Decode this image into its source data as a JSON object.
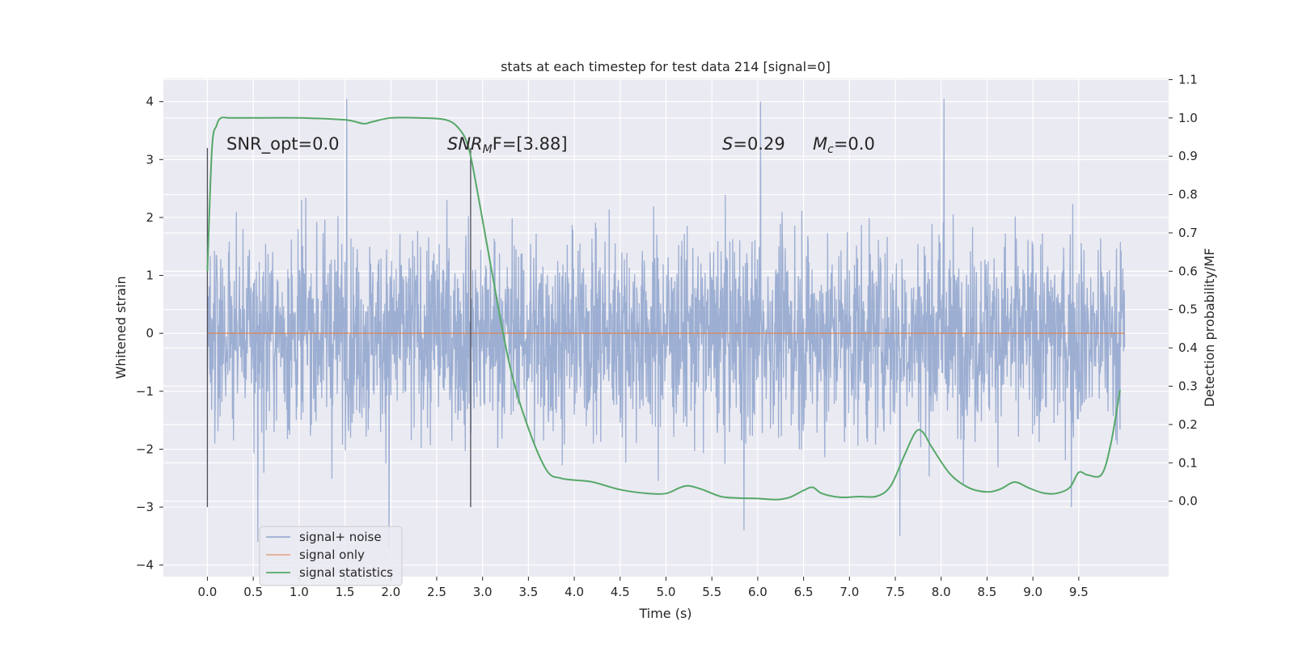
{
  "chart_data": {
    "type": "line",
    "title": "stats at each timestep for test data 214 [signal=0]",
    "xlabel": "Time (s)",
    "ylabel_left": "Whitened strain",
    "ylabel_right": "Detection probability/MF",
    "xlim": [
      -0.48,
      10.48
    ],
    "ylim_left": [
      -4.2,
      4.4
    ],
    "ylim_right": [
      -0.197,
      1.103
    ],
    "x_ticks": [
      0.0,
      0.5,
      1.0,
      1.5,
      2.0,
      2.5,
      3.0,
      3.5,
      4.0,
      4.5,
      5.0,
      5.5,
      6.0,
      6.5,
      7.0,
      7.5,
      8.0,
      8.5,
      9.0,
      9.5
    ],
    "x_tick_labels": [
      "0.0",
      "0.5",
      "1.0",
      "1.5",
      "2.0",
      "2.5",
      "3.0",
      "3.5",
      "4.0",
      "4.5",
      "5.0",
      "5.5",
      "6.0",
      "6.5",
      "7.0",
      "7.5",
      "8.0",
      "8.5",
      "9.0",
      "9.5"
    ],
    "y_ticks_left": [
      -4,
      -3,
      -2,
      -1,
      0,
      1,
      2,
      3,
      4
    ],
    "y_tick_labels_left": [
      "−4",
      "−3",
      "−2",
      "−1",
      "0",
      "1",
      "2",
      "3",
      "4"
    ],
    "y_ticks_right": [
      0.0,
      0.1,
      0.2,
      0.3,
      0.4,
      0.5,
      0.6,
      0.7,
      0.8,
      0.9,
      1.0,
      1.1
    ],
    "y_tick_labels_right": [
      "0.0",
      "0.1",
      "0.2",
      "0.3",
      "0.4",
      "0.5",
      "0.6",
      "0.7",
      "0.8",
      "0.9",
      "1.0",
      "1.1"
    ],
    "grid": true,
    "legend_position": "lower-left",
    "series": [
      {
        "name": "signal+ noise",
        "axis": "left",
        "color": "#8ea3cc",
        "kind": "noisy whitened strain, roughly uniform band about -2.4 to 2.2 with spikes up to about 4.1 and down to about -3.7",
        "x_range": [
          0.0,
          10.0
        ],
        "envelope_typical": [
          -2.4,
          2.2
        ],
        "spikes": [
          {
            "x": 1.52,
            "y": 4.05
          },
          {
            "x": 6.03,
            "y": 4.0
          },
          {
            "x": 8.03,
            "y": 4.05
          },
          {
            "x": 0.55,
            "y": -3.6
          },
          {
            "x": 1.98,
            "y": -3.7
          },
          {
            "x": 7.55,
            "y": -3.5
          },
          {
            "x": 5.85,
            "y": -3.4
          },
          {
            "x": 9.42,
            "y": -3.0
          }
        ]
      },
      {
        "name": "signal only",
        "axis": "left",
        "color": "#dd8452",
        "x": [
          0.0,
          10.0
        ],
        "y": [
          0.0,
          0.0
        ]
      },
      {
        "name": "signal statistics",
        "axis": "right",
        "color": "#55a868",
        "x": [
          0.0,
          0.05,
          0.1,
          0.15,
          0.25,
          0.5,
          1.0,
          1.5,
          1.7,
          1.8,
          2.0,
          2.3,
          2.6,
          2.75,
          2.85,
          2.95,
          3.1,
          3.3,
          3.5,
          3.7,
          3.85,
          4.0,
          4.2,
          4.5,
          4.8,
          5.0,
          5.15,
          5.25,
          5.4,
          5.6,
          5.8,
          6.0,
          6.2,
          6.35,
          6.5,
          6.6,
          6.7,
          6.9,
          7.1,
          7.3,
          7.45,
          7.6,
          7.72,
          7.8,
          7.9,
          8.1,
          8.3,
          8.5,
          8.65,
          8.8,
          8.95,
          9.1,
          9.25,
          9.4,
          9.5,
          9.6,
          9.75,
          9.85,
          9.95
        ],
        "y": [
          0.6,
          0.92,
          0.98,
          1.0,
          1.0,
          1.0,
          1.0,
          0.995,
          0.985,
          0.99,
          1.0,
          1.0,
          0.995,
          0.97,
          0.92,
          0.8,
          0.6,
          0.35,
          0.19,
          0.08,
          0.06,
          0.055,
          0.05,
          0.03,
          0.02,
          0.02,
          0.035,
          0.04,
          0.03,
          0.012,
          0.008,
          0.007,
          0.004,
          0.01,
          0.028,
          0.036,
          0.02,
          0.01,
          0.012,
          0.013,
          0.04,
          0.12,
          0.18,
          0.18,
          0.14,
          0.07,
          0.035,
          0.024,
          0.032,
          0.05,
          0.035,
          0.022,
          0.02,
          0.035,
          0.075,
          0.068,
          0.07,
          0.15,
          0.29
        ]
      }
    ],
    "vertical_lines": [
      {
        "x": 0.0,
        "y_range": [
          -3.0,
          3.2
        ]
      },
      {
        "x": 2.87,
        "y_range": [
          -3.0,
          3.2
        ]
      }
    ],
    "annotations": {
      "snr_opt": "SNR_opt=0.0",
      "snr_mf_name": "SNR",
      "snr_mf_sub": "M",
      "snr_mf_post": "F=[3.88]",
      "s_name": "S",
      "s_value": "=0.29",
      "mc_name": "M",
      "mc_sub": "c",
      "mc_value": "=0.0"
    },
    "legend": [
      "signal+ noise",
      "signal only",
      "signal statistics"
    ]
  }
}
